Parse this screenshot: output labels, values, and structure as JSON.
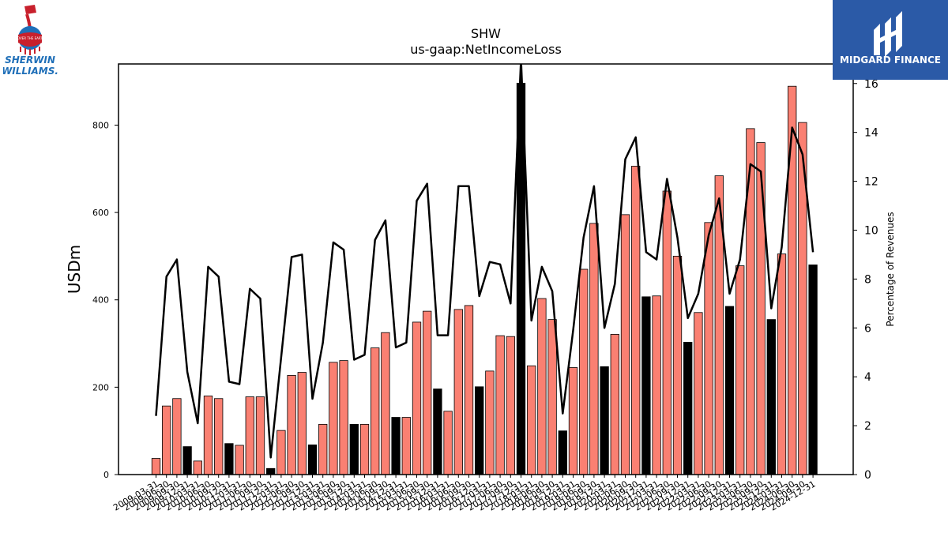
{
  "branding": {
    "left_logo_line1": "SHERWIN",
    "left_logo_line2": "WILLIAMS.",
    "left_logo_can_text": "COVER THE EARTH",
    "right_logo_text": "MIDGARD FINANCE",
    "right_logo_bg": "#2b5aa7"
  },
  "chart_data": {
    "type": "bar",
    "title": "SHW",
    "subtitle": "us-gaap:NetIncomeLoss",
    "ylabel": "USDm",
    "y2label": "Percentage of Revenues",
    "ylim": [
      0,
      940
    ],
    "y2lim": [
      0,
      16.8
    ],
    "yticks": [
      0,
      200,
      400,
      600,
      800
    ],
    "y2ticks": [
      0,
      2,
      4,
      6,
      8,
      10,
      12,
      14,
      16
    ],
    "colors": {
      "quarter": "#fa8072",
      "annual": "#000000",
      "line": "#000000"
    },
    "categories": [
      "2009-03-31",
      "2009-06-30",
      "2009-09-30",
      "2009-12-31",
      "2010-03-31",
      "2010-06-30",
      "2010-09-30",
      "2010-12-31",
      "2011-03-31",
      "2011-06-30",
      "2011-09-30",
      "2011-12-31",
      "2012-03-31",
      "2012-06-30",
      "2012-09-30",
      "2012-12-31",
      "2013-03-31",
      "2013-06-30",
      "2013-09-30",
      "2013-12-31",
      "2014-03-31",
      "2014-06-30",
      "2014-09-30",
      "2014-12-31",
      "2015-03-31",
      "2015-06-30",
      "2015-09-30",
      "2015-12-31",
      "2016-03-31",
      "2016-06-30",
      "2016-09-30",
      "2016-12-31",
      "2017-03-31",
      "2017-06-30",
      "2017-09-30",
      "2017-12-31",
      "2018-03-31",
      "2018-06-30",
      "2018-09-30",
      "2018-12-31",
      "2019-03-31",
      "2019-06-30",
      "2019-09-30",
      "2019-12-31",
      "2020-03-31",
      "2020-06-30",
      "2020-09-30",
      "2020-12-31",
      "2021-03-31",
      "2021-06-30",
      "2021-09-30",
      "2021-12-31",
      "2022-03-31",
      "2022-06-30",
      "2022-09-30",
      "2022-12-31",
      "2023-03-31",
      "2023-06-30",
      "2023-09-30",
      "2023-12-31",
      "2024-03-31",
      "2024-06-30",
      "2024-09-30",
      "2024-12-31"
    ],
    "values": [
      37,
      157,
      174,
      64,
      31,
      180,
      174,
      71,
      67,
      178,
      178,
      14,
      101,
      227,
      234,
      68,
      115,
      257,
      261,
      115,
      115,
      290,
      325,
      131,
      131,
      349,
      374,
      196,
      145,
      378,
      387,
      201,
      237,
      318,
      316,
      896,
      249,
      403,
      355,
      100,
      245,
      470,
      575,
      247,
      321,
      595,
      706,
      407,
      409,
      649,
      500,
      303,
      371,
      577,
      684,
      385,
      478,
      792,
      760,
      355,
      505,
      889,
      806,
      480
    ],
    "bar_kind": [
      "quarter",
      "quarter",
      "quarter",
      "annual",
      "quarter",
      "quarter",
      "quarter",
      "annual",
      "quarter",
      "quarter",
      "quarter",
      "annual",
      "quarter",
      "quarter",
      "quarter",
      "annual",
      "quarter",
      "quarter",
      "quarter",
      "annual",
      "quarter",
      "quarter",
      "quarter",
      "annual",
      "quarter",
      "quarter",
      "quarter",
      "annual",
      "quarter",
      "quarter",
      "quarter",
      "annual",
      "quarter",
      "quarter",
      "quarter",
      "annual",
      "quarter",
      "quarter",
      "quarter",
      "annual",
      "quarter",
      "quarter",
      "quarter",
      "annual",
      "quarter",
      "quarter",
      "quarter",
      "annual",
      "quarter",
      "quarter",
      "quarter",
      "annual",
      "quarter",
      "quarter",
      "quarter",
      "annual",
      "quarter",
      "quarter",
      "quarter",
      "annual",
      "quarter",
      "quarter",
      "quarter",
      "annual"
    ],
    "pct_of_revenue": [
      2.4,
      8.1,
      8.8,
      4.2,
      2.1,
      8.5,
      8.1,
      3.8,
      3.7,
      7.6,
      7.2,
      0.7,
      4.8,
      8.9,
      9.0,
      3.1,
      5.4,
      9.5,
      9.2,
      4.7,
      4.9,
      9.6,
      10.4,
      5.2,
      5.4,
      11.2,
      11.9,
      5.7,
      5.7,
      11.8,
      11.8,
      7.3,
      8.7,
      8.6,
      7.0,
      17.0,
      6.3,
      8.5,
      7.5,
      2.5,
      5.9,
      9.7,
      11.8,
      6.0,
      7.8,
      12.9,
      13.8,
      9.1,
      8.8,
      12.1,
      9.7,
      6.4,
      7.4,
      9.8,
      11.3,
      7.4,
      8.8,
      12.7,
      12.4,
      6.8,
      9.3,
      14.2,
      13.1,
      9.1
    ]
  }
}
